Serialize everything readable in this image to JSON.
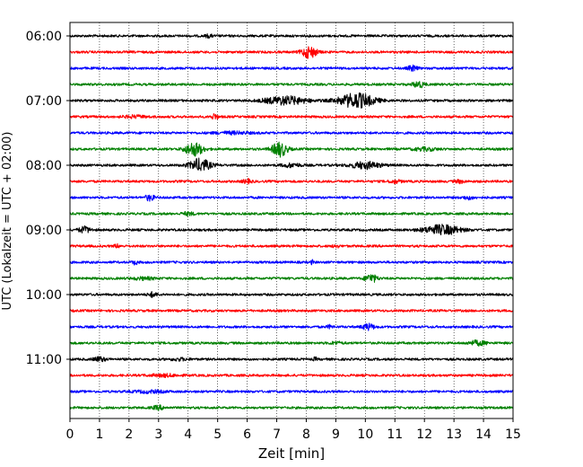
{
  "chart_data": {
    "type": "line",
    "title": "",
    "xlabel": "Zeit  [min]",
    "ylabel": "UTC (Lokalzeit = UTC + 02:00)",
    "xlim": [
      0,
      15
    ],
    "x_ticks": [
      "0",
      "1",
      "2",
      "3",
      "4",
      "5",
      "6",
      "7",
      "8",
      "9",
      "10",
      "11",
      "12",
      "13",
      "14",
      "15"
    ],
    "y_ticks": [
      {
        "label": "06:00",
        "trace": 0
      },
      {
        "label": "07:00",
        "trace": 4
      },
      {
        "label": "08:00",
        "trace": 8
      },
      {
        "label": "09:00",
        "trace": 12
      },
      {
        "label": "10:00",
        "trace": 16
      },
      {
        "label": "11:00",
        "trace": 20
      }
    ],
    "grid": "vertical-dotted",
    "color_cycle": [
      "#000000",
      "#ff0000",
      "#0000ff",
      "#008000"
    ],
    "traces": [
      {
        "start": "06:00",
        "color": "#000000",
        "events": [
          {
            "t": 4.7,
            "amp": 0.4,
            "w": 0.12
          }
        ]
      },
      {
        "start": "06:15",
        "color": "#ff0000",
        "events": [
          {
            "t": 8.1,
            "amp": 1.6,
            "w": 0.25
          }
        ]
      },
      {
        "start": "06:30",
        "color": "#0000ff",
        "events": [
          {
            "t": 11.6,
            "amp": 0.7,
            "w": 0.15
          }
        ]
      },
      {
        "start": "06:45",
        "color": "#008000",
        "events": [
          {
            "t": 11.8,
            "amp": 0.8,
            "w": 0.2
          }
        ]
      },
      {
        "start": "07:00",
        "color": "#000000",
        "events": [
          {
            "t": 7.3,
            "amp": 1.1,
            "w": 0.7
          },
          {
            "t": 9.7,
            "amp": 2.0,
            "w": 0.6
          }
        ]
      },
      {
        "start": "07:15",
        "color": "#ff0000",
        "events": [
          {
            "t": 4.9,
            "amp": 0.8,
            "w": 0.1
          },
          {
            "t": 2.2,
            "amp": 0.3,
            "w": 0.4
          }
        ]
      },
      {
        "start": "07:30",
        "color": "#0000ff",
        "events": [
          {
            "t": 5.5,
            "amp": 0.3,
            "w": 0.6
          }
        ]
      },
      {
        "start": "07:45",
        "color": "#008000",
        "events": [
          {
            "t": 4.2,
            "amp": 1.8,
            "w": 0.3
          },
          {
            "t": 7.1,
            "amp": 2.0,
            "w": 0.25
          },
          {
            "t": 12.0,
            "amp": 0.4,
            "w": 0.4
          }
        ]
      },
      {
        "start": "08:00",
        "color": "#000000",
        "events": [
          {
            "t": 4.4,
            "amp": 1.7,
            "w": 0.35
          },
          {
            "t": 10.0,
            "amp": 0.9,
            "w": 0.5
          },
          {
            "t": 7.5,
            "amp": 0.5,
            "w": 0.3
          }
        ]
      },
      {
        "start": "08:15",
        "color": "#ff0000",
        "events": [
          {
            "t": 6.0,
            "amp": 0.5,
            "w": 0.15
          },
          {
            "t": 11.0,
            "amp": 0.4,
            "w": 0.2
          },
          {
            "t": 13.2,
            "amp": 0.4,
            "w": 0.15
          }
        ]
      },
      {
        "start": "08:30",
        "color": "#0000ff",
        "events": [
          {
            "t": 2.7,
            "amp": 0.8,
            "w": 0.15
          },
          {
            "t": 13.5,
            "amp": 0.4,
            "w": 0.2
          }
        ]
      },
      {
        "start": "08:45",
        "color": "#008000",
        "events": [
          {
            "t": 4.0,
            "amp": 0.4,
            "w": 0.2
          }
        ]
      },
      {
        "start": "09:00",
        "color": "#000000",
        "events": [
          {
            "t": 0.5,
            "amp": 0.8,
            "w": 0.2
          },
          {
            "t": 12.6,
            "amp": 1.3,
            "w": 0.6
          }
        ]
      },
      {
        "start": "09:15",
        "color": "#ff0000",
        "events": [
          {
            "t": 1.6,
            "amp": 0.4,
            "w": 0.1
          },
          {
            "t": 9.0,
            "amp": 0.4,
            "w": 0.1
          }
        ]
      },
      {
        "start": "09:30",
        "color": "#0000ff",
        "events": [
          {
            "t": 2.2,
            "amp": 0.5,
            "w": 0.1
          },
          {
            "t": 8.2,
            "amp": 0.5,
            "w": 0.05
          }
        ]
      },
      {
        "start": "09:45",
        "color": "#008000",
        "events": [
          {
            "t": 10.2,
            "amp": 1.1,
            "w": 0.2
          },
          {
            "t": 2.5,
            "amp": 0.3,
            "w": 0.4
          }
        ]
      },
      {
        "start": "10:00",
        "color": "#000000",
        "events": [
          {
            "t": 2.8,
            "amp": 0.6,
            "w": 0.15
          }
        ]
      },
      {
        "start": "10:15",
        "color": "#ff0000",
        "events": []
      },
      {
        "start": "10:30",
        "color": "#0000ff",
        "events": [
          {
            "t": 10.1,
            "amp": 0.8,
            "w": 0.2
          },
          {
            "t": 8.8,
            "amp": 0.4,
            "w": 0.1
          }
        ]
      },
      {
        "start": "10:45",
        "color": "#008000",
        "events": [
          {
            "t": 13.8,
            "amp": 0.6,
            "w": 0.3
          },
          {
            "t": 9.0,
            "amp": 0.3,
            "w": 0.2
          }
        ]
      },
      {
        "start": "11:00",
        "color": "#000000",
        "events": [
          {
            "t": 1.0,
            "amp": 0.6,
            "w": 0.2
          },
          {
            "t": 8.3,
            "amp": 0.5,
            "w": 0.05
          },
          {
            "t": 3.7,
            "amp": 0.3,
            "w": 0.3
          }
        ]
      },
      {
        "start": "11:15",
        "color": "#ff0000",
        "events": [
          {
            "t": 3.2,
            "amp": 0.3,
            "w": 0.5
          }
        ]
      },
      {
        "start": "11:30",
        "color": "#0000ff",
        "events": [
          {
            "t": 2.7,
            "amp": 0.3,
            "w": 0.5
          }
        ]
      },
      {
        "start": "11:45",
        "color": "#008000",
        "events": [
          {
            "t": 3.0,
            "amp": 0.5,
            "w": 0.2
          }
        ]
      }
    ]
  }
}
